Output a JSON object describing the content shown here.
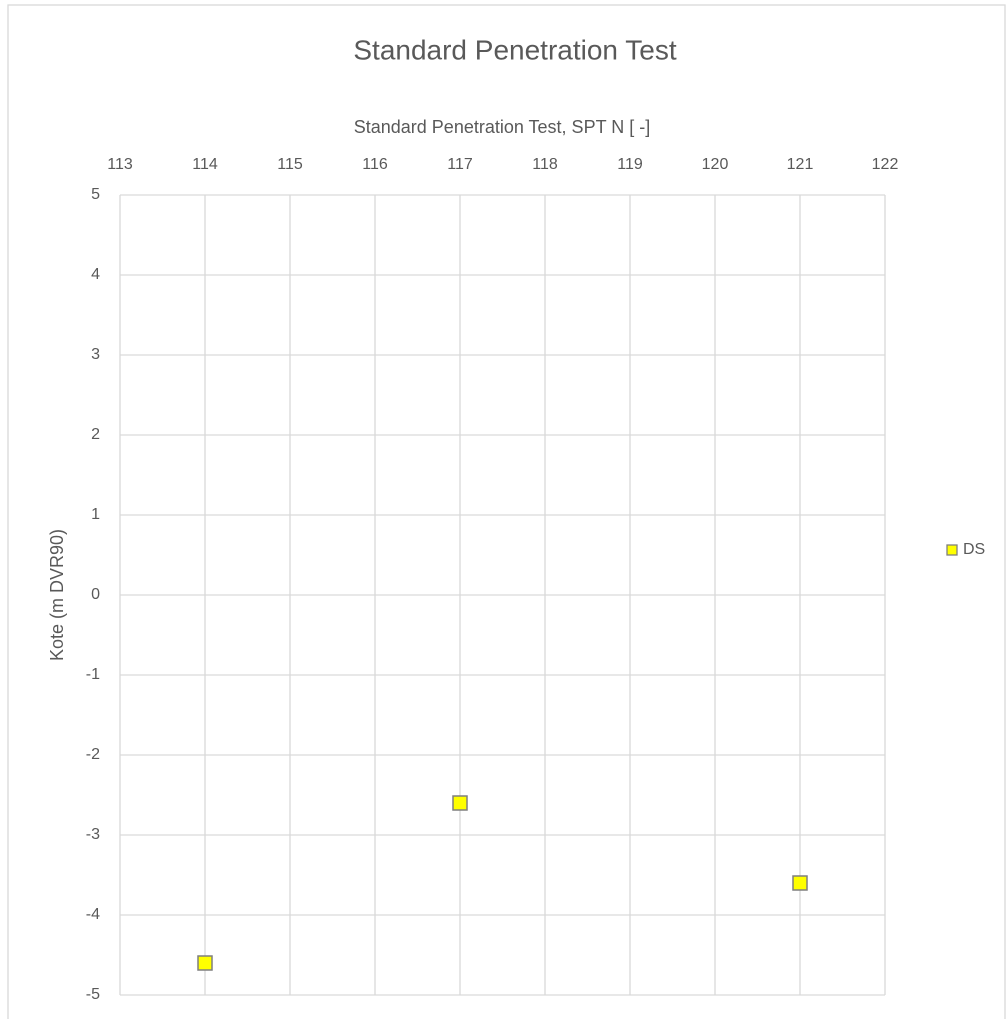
{
  "chart_data": {
    "type": "scatter",
    "title": "Standard Penetration Test",
    "x_label": "Standard Penetration Test, SPT N [  -]",
    "y_label": "Kote (m DVR90)",
    "series": [
      {
        "name": "DS",
        "color": "#ffff00",
        "edge_color": "#7f7f7f",
        "x": [
          114,
          117,
          121
        ],
        "values": [
          -4.6,
          -2.6,
          -3.6
        ]
      }
    ],
    "xlim": [
      113,
      122
    ],
    "xticks": [
      113,
      114,
      115,
      116,
      117,
      118,
      119,
      120,
      121,
      122
    ],
    "ylim": [
      -5,
      5
    ],
    "yticks": [
      5,
      4,
      3,
      2,
      1,
      0,
      -1,
      -2,
      -3,
      -4,
      -5
    ],
    "x_axis_position": "top",
    "grid": true,
    "legend": "right"
  }
}
